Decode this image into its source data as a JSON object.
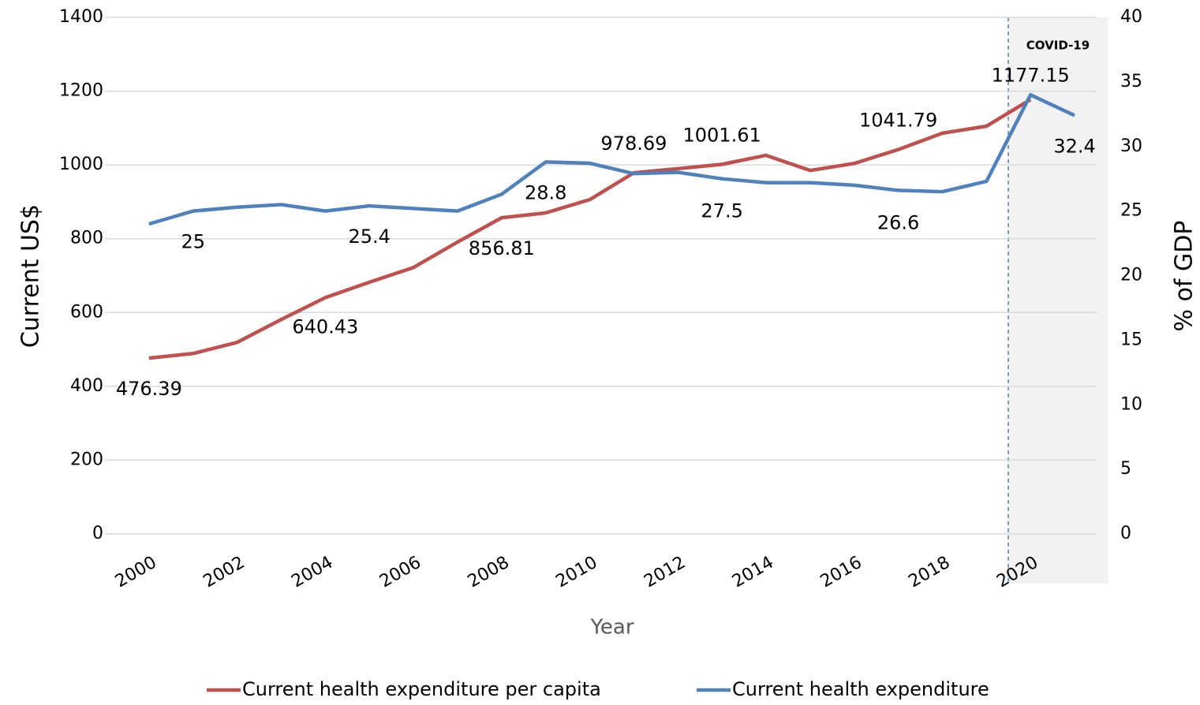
{
  "chart_data": {
    "type": "line",
    "x": [
      2000,
      2001,
      2002,
      2003,
      2004,
      2005,
      2006,
      2007,
      2008,
      2009,
      2010,
      2011,
      2012,
      2013,
      2014,
      2015,
      2016,
      2017,
      2018,
      2019,
      2020,
      2021
    ],
    "series": [
      {
        "name": "Current health expenditure per capita",
        "color": "#c0504d",
        "axis": "y",
        "values": [
          476.39,
          489,
          519,
          581,
          640.43,
          682,
          722,
          791,
          856.81,
          870,
          906,
          978.69,
          990,
          1001.61,
          1026,
          985,
          1004,
          1041.79,
          1086,
          1105,
          1177.15,
          null
        ],
        "value_labels": [
          "476.39",
          null,
          null,
          null,
          "640.43",
          null,
          null,
          null,
          "856.81",
          null,
          null,
          "978.69",
          null,
          "1001.61",
          null,
          null,
          null,
          "1041.79",
          null,
          null,
          "1177.15",
          null
        ]
      },
      {
        "name": "Current health expenditure",
        "color": "#4f81bd",
        "axis": "y2",
        "values": [
          24.0,
          25,
          25.3,
          25.5,
          25.0,
          25.4,
          25.2,
          25.0,
          26.3,
          28.8,
          28.7,
          27.9,
          28.0,
          27.5,
          27.2,
          27.2,
          27.0,
          26.6,
          26.5,
          27.3,
          34.0,
          32.4
        ],
        "value_labels": [
          null,
          "25",
          null,
          null,
          null,
          "25.4",
          null,
          null,
          null,
          "28.8",
          null,
          null,
          null,
          "27.5",
          null,
          null,
          null,
          "26.6",
          null,
          null,
          null,
          "32.4"
        ]
      }
    ],
    "xlabel": "Year",
    "ylabel": "Current US$",
    "y2label": "% of GDP",
    "annotation": "COVID-19",
    "xlim": [
      1999,
      2021.5
    ],
    "xticks": [
      2000,
      2002,
      2004,
      2006,
      2008,
      2010,
      2012,
      2014,
      2016,
      2018,
      2020
    ],
    "ylim": [
      0,
      1400
    ],
    "yticks": [
      0,
      200,
      400,
      600,
      800,
      1000,
      1200,
      1400
    ],
    "y2lim": [
      0,
      40
    ],
    "y2ticks": [
      0,
      5,
      10,
      15,
      20,
      25,
      30,
      35,
      40
    ],
    "grid": true,
    "legend": "bottom"
  }
}
